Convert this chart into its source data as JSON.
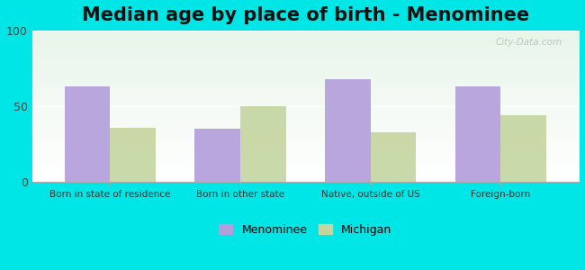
{
  "title": "Median age by place of birth - Menominee",
  "categories": [
    "Born in state of residence",
    "Born in other state",
    "Native, outside of US",
    "Foreign-born"
  ],
  "menominee_values": [
    63,
    35,
    68,
    63
  ],
  "michigan_values": [
    36,
    50,
    33,
    44
  ],
  "menominee_color": "#b39ddb",
  "michigan_color": "#c5d5a0",
  "ylim": [
    0,
    100
  ],
  "yticks": [
    0,
    50,
    100
  ],
  "background_color": "#00e5e5",
  "plot_bg_top": "#e8f5e9",
  "plot_bg_bottom": "#ffffff",
  "legend_menominee": "Menominee",
  "legend_michigan": "Michigan",
  "title_fontsize": 15,
  "bar_width": 0.35,
  "watermark": "City-Data.com"
}
